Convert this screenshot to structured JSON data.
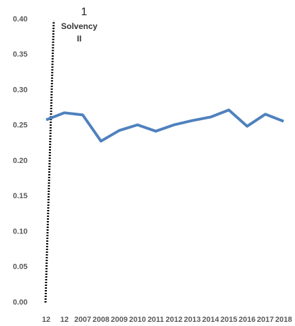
{
  "chart_data": {
    "type": "line",
    "categories": [
      "12",
      "12",
      "2007",
      "2008",
      "2009",
      "2010",
      "2011",
      "2012",
      "2013",
      "2014",
      "2015",
      "2016",
      "2017",
      "2018"
    ],
    "series": [
      {
        "color": "#4f81bd",
        "values": [
          0.258,
          0.268,
          0.265,
          0.228,
          0.243,
          0.251,
          0.242,
          0.251,
          0.257,
          0.262,
          0.272,
          0.249,
          0.266,
          0.256
        ]
      }
    ],
    "ylim": [
      0,
      0.4
    ],
    "yticks": [
      {
        "value": 0,
        "label": "0.00"
      },
      {
        "value": 0.05,
        "label": "0.05"
      },
      {
        "value": 0.1,
        "label": "0.10"
      },
      {
        "value": 0.15,
        "label": "0.15"
      },
      {
        "value": 0.2,
        "label": "0.20"
      },
      {
        "value": 0.25,
        "label": "0.25"
      },
      {
        "value": 0.3,
        "label": "0.30"
      },
      {
        "value": 0.35,
        "label": "0.35"
      },
      {
        "value": 0.4,
        "label": "0.40"
      }
    ],
    "annotation": {
      "number": "1",
      "lines": [
        "Solvency",
        "II"
      ]
    }
  }
}
